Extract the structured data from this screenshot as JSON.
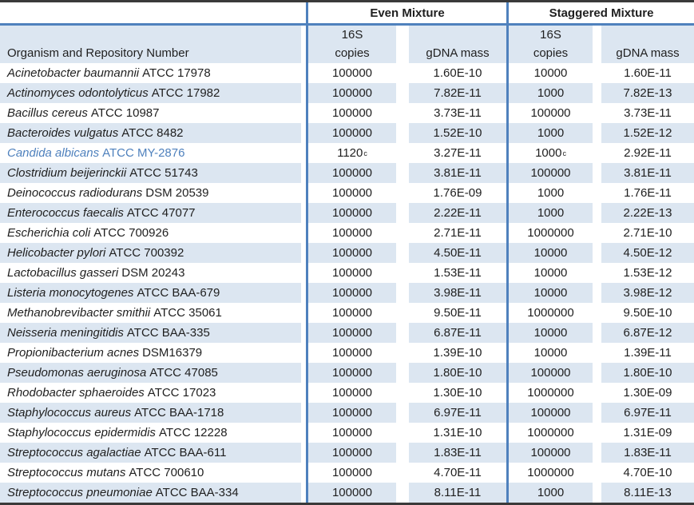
{
  "header": {
    "even_mixture": "Even Mixture",
    "staggered_mixture": "Staggered Mixture",
    "organism_col": "Organism and Repository Number",
    "sixteen_s": "16S",
    "copies": "copies",
    "gdna_mass": "gDNA mass"
  },
  "colors": {
    "row_stripe": "#dce6f1",
    "blue_border": "#4f81bd",
    "dark_border": "#3a3a3a",
    "text": "#1f1f1f",
    "highlight_text": "#4f81bd"
  },
  "rows": [
    {
      "species": "Acinetobacter baumannii",
      "repo": "ATCC 17978",
      "even_copies": "100000",
      "even_sup": "",
      "even_gdna": "1.60E-10",
      "stag_copies": "10000",
      "stag_sup": "",
      "stag_gdna": "1.60E-11",
      "highlight": false
    },
    {
      "species": "Actinomyces odontolyticus",
      "repo": "ATCC 17982",
      "even_copies": "100000",
      "even_sup": "",
      "even_gdna": "7.82E-11",
      "stag_copies": "1000",
      "stag_sup": "",
      "stag_gdna": "7.82E-13",
      "highlight": false
    },
    {
      "species": "Bacillus cereus",
      "repo": "ATCC 10987",
      "even_copies": "100000",
      "even_sup": "",
      "even_gdna": "3.73E-11",
      "stag_copies": "100000",
      "stag_sup": "",
      "stag_gdna": "3.73E-11",
      "highlight": false
    },
    {
      "species": "Bacteroides vulgatus",
      "repo": "ATCC 8482",
      "even_copies": "100000",
      "even_sup": "",
      "even_gdna": "1.52E-10",
      "stag_copies": "1000",
      "stag_sup": "",
      "stag_gdna": "1.52E-12",
      "highlight": false
    },
    {
      "species": "Candida albicans",
      "repo": "ATCC MY-2876",
      "even_copies": "1120",
      "even_sup": "c",
      "even_gdna": "3.27E-11",
      "stag_copies": "1000",
      "stag_sup": "c",
      "stag_gdna": "2.92E-11",
      "highlight": true
    },
    {
      "species": "Clostridium beijerinckii",
      "repo": "ATCC 51743",
      "even_copies": "100000",
      "even_sup": "",
      "even_gdna": "3.81E-11",
      "stag_copies": "100000",
      "stag_sup": "",
      "stag_gdna": "3.81E-11",
      "highlight": false
    },
    {
      "species": "Deinococcus radiodurans",
      "repo": "DSM 20539",
      "even_copies": "100000",
      "even_sup": "",
      "even_gdna": "1.76E-09",
      "stag_copies": "1000",
      "stag_sup": "",
      "stag_gdna": "1.76E-11",
      "highlight": false
    },
    {
      "species": "Enterococcus faecalis",
      "repo": "ATCC 47077",
      "even_copies": "100000",
      "even_sup": "",
      "even_gdna": "2.22E-11",
      "stag_copies": "1000",
      "stag_sup": "",
      "stag_gdna": "2.22E-13",
      "highlight": false
    },
    {
      "species": "Escherichia coli",
      "repo": "ATCC 700926",
      "even_copies": "100000",
      "even_sup": "",
      "even_gdna": "2.71E-11",
      "stag_copies": "1000000",
      "stag_sup": "",
      "stag_gdna": "2.71E-10",
      "highlight": false
    },
    {
      "species": "Helicobacter pylori",
      "repo": "ATCC 700392",
      "even_copies": "100000",
      "even_sup": "",
      "even_gdna": "4.50E-11",
      "stag_copies": "10000",
      "stag_sup": "",
      "stag_gdna": "4.50E-12",
      "highlight": false
    },
    {
      "species": "Lactobacillus gasseri",
      "repo": "DSM 20243",
      "even_copies": "100000",
      "even_sup": "",
      "even_gdna": "1.53E-11",
      "stag_copies": "10000",
      "stag_sup": "",
      "stag_gdna": "1.53E-12",
      "highlight": false
    },
    {
      "species": "Listeria monocytogenes",
      "repo": "ATCC BAA-679",
      "even_copies": "100000",
      "even_sup": "",
      "even_gdna": "3.98E-11",
      "stag_copies": "10000",
      "stag_sup": "",
      "stag_gdna": "3.98E-12",
      "highlight": false
    },
    {
      "species": "Methanobrevibacter smithii",
      "repo": "ATCC 35061",
      "even_copies": "100000",
      "even_sup": "",
      "even_gdna": "9.50E-11",
      "stag_copies": "1000000",
      "stag_sup": "",
      "stag_gdna": "9.50E-10",
      "highlight": false
    },
    {
      "species": "Neisseria meningitidis",
      "repo": "ATCC BAA-335",
      "even_copies": "100000",
      "even_sup": "",
      "even_gdna": "6.87E-11",
      "stag_copies": "10000",
      "stag_sup": "",
      "stag_gdna": "6.87E-12",
      "highlight": false
    },
    {
      "species": "Propionibacterium acnes",
      "repo": "DSM16379",
      "even_copies": "100000",
      "even_sup": "",
      "even_gdna": "1.39E-10",
      "stag_copies": "10000",
      "stag_sup": "",
      "stag_gdna": "1.39E-11",
      "highlight": false
    },
    {
      "species": "Pseudomonas aeruginosa",
      "repo": "ATCC 47085",
      "even_copies": "100000",
      "even_sup": "",
      "even_gdna": "1.80E-10",
      "stag_copies": "100000",
      "stag_sup": "",
      "stag_gdna": "1.80E-10",
      "highlight": false
    },
    {
      "species": "Rhodobacter sphaeroides",
      "repo": "ATCC 17023",
      "even_copies": "100000",
      "even_sup": "",
      "even_gdna": "1.30E-10",
      "stag_copies": "1000000",
      "stag_sup": "",
      "stag_gdna": "1.30E-09",
      "highlight": false
    },
    {
      "species": "Staphylococcus aureus",
      "repo": "ATCC BAA-1718",
      "even_copies": "100000",
      "even_sup": "",
      "even_gdna": "6.97E-11",
      "stag_copies": "100000",
      "stag_sup": "",
      "stag_gdna": "6.97E-11",
      "highlight": false
    },
    {
      "species": "Staphylococcus epidermidis",
      "repo": "ATCC 12228",
      "even_copies": "100000",
      "even_sup": "",
      "even_gdna": "1.31E-10",
      "stag_copies": "1000000",
      "stag_sup": "",
      "stag_gdna": "1.31E-09",
      "highlight": false
    },
    {
      "species": "Streptococcus agalactiae",
      "repo": "ATCC BAA-611",
      "even_copies": "100000",
      "even_sup": "",
      "even_gdna": "1.83E-11",
      "stag_copies": "100000",
      "stag_sup": "",
      "stag_gdna": "1.83E-11",
      "highlight": false
    },
    {
      "species": "Streptococcus mutans",
      "repo": "ATCC 700610",
      "even_copies": "100000",
      "even_sup": "",
      "even_gdna": "4.70E-11",
      "stag_copies": "1000000",
      "stag_sup": "",
      "stag_gdna": "4.70E-10",
      "highlight": false
    },
    {
      "species": "Streptococcus pneumoniae",
      "repo": "ATCC BAA-334",
      "even_copies": "100000",
      "even_sup": "",
      "even_gdna": "8.11E-11",
      "stag_copies": "1000",
      "stag_sup": "",
      "stag_gdna": "8.11E-13",
      "highlight": false
    }
  ]
}
